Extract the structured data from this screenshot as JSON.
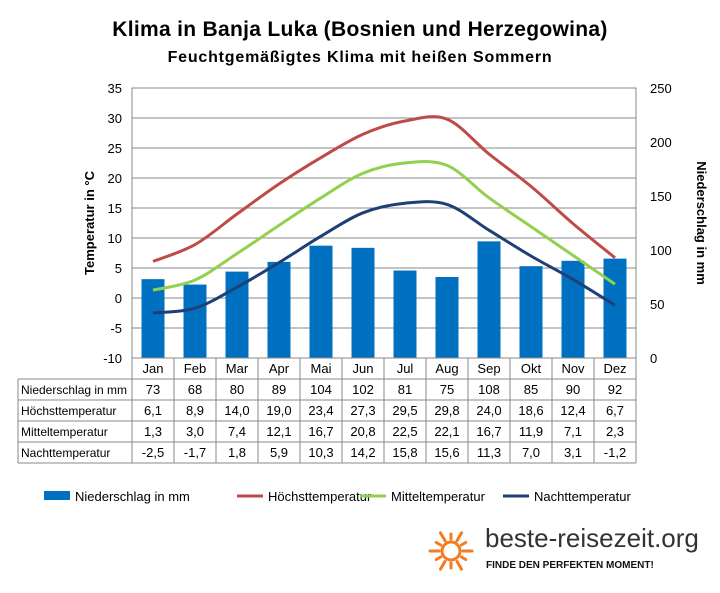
{
  "header": {
    "title": "Klima in Banja Luka (Bosnien und Herzegowina)",
    "subtitle": "Feuchtgemäßigtes Klima mit heißen Sommern"
  },
  "chart_data": {
    "type": "bar+line",
    "categories": [
      "Jan",
      "Feb",
      "Mar",
      "Apr",
      "Mai",
      "Jun",
      "Jul",
      "Aug",
      "Sep",
      "Okt",
      "Nov",
      "Dez"
    ],
    "y_left": {
      "label": "Temperatur in °C",
      "min": -10,
      "max": 35,
      "step": 5,
      "ticks": [
        "-10",
        "-5",
        "0",
        "5",
        "10",
        "15",
        "20",
        "25",
        "30",
        "35"
      ]
    },
    "y_right": {
      "label": "Niederschlag in mm",
      "min": 0,
      "max": 250,
      "step": 50,
      "ticks": [
        "0",
        "50",
        "100",
        "150",
        "200",
        "250"
      ]
    },
    "grid": true,
    "legend": "bottom",
    "series": [
      {
        "name": "Niederschlag in mm",
        "kind": "bar",
        "axis": "right",
        "color": "#0070c0",
        "values": [
          73,
          68,
          80,
          89,
          104,
          102,
          81,
          75,
          108,
          85,
          90,
          92
        ],
        "labels": [
          "73",
          "68",
          "80",
          "89",
          "104",
          "102",
          "81",
          "75",
          "108",
          "85",
          "90",
          "92"
        ]
      },
      {
        "name": "Höchsttemperatur",
        "kind": "line",
        "axis": "left",
        "color": "#be4b48",
        "values": [
          6.1,
          8.9,
          14.0,
          19.0,
          23.4,
          27.3,
          29.5,
          29.8,
          24.0,
          18.6,
          12.4,
          6.7
        ],
        "labels": [
          "6,1",
          "8,9",
          "14,0",
          "19,0",
          "23,4",
          "27,3",
          "29,5",
          "29,8",
          "24,0",
          "18,6",
          "12,4",
          "6,7"
        ]
      },
      {
        "name": "Mitteltemperatur",
        "kind": "line",
        "axis": "left",
        "color": "#92d050",
        "values": [
          1.3,
          3.0,
          7.4,
          12.1,
          16.7,
          20.8,
          22.5,
          22.1,
          16.7,
          11.9,
          7.1,
          2.3
        ],
        "labels": [
          "1,3",
          "3,0",
          "7,4",
          "12,1",
          "16,7",
          "20,8",
          "22,5",
          "22,1",
          "16,7",
          "11,9",
          "7,1",
          "2,3"
        ]
      },
      {
        "name": "Nachttemperatur",
        "kind": "line",
        "axis": "left",
        "color": "#1f3f77",
        "values": [
          -2.5,
          -1.7,
          1.8,
          5.9,
          10.3,
          14.2,
          15.8,
          15.6,
          11.3,
          7.0,
          3.1,
          -1.2
        ],
        "labels": [
          "-2,5",
          "-1,7",
          "1,8",
          "5,9",
          "10,3",
          "14,2",
          "15,8",
          "15,6",
          "11,3",
          "7,0",
          "3,1",
          "-1,2"
        ]
      }
    ]
  },
  "branding": {
    "site": "beste-reisezeit.org",
    "tagline": "FINDE DEN PERFEKTEN MOMENT!",
    "logo_icon": "sun-icon",
    "logo_color": "#f47b20"
  }
}
